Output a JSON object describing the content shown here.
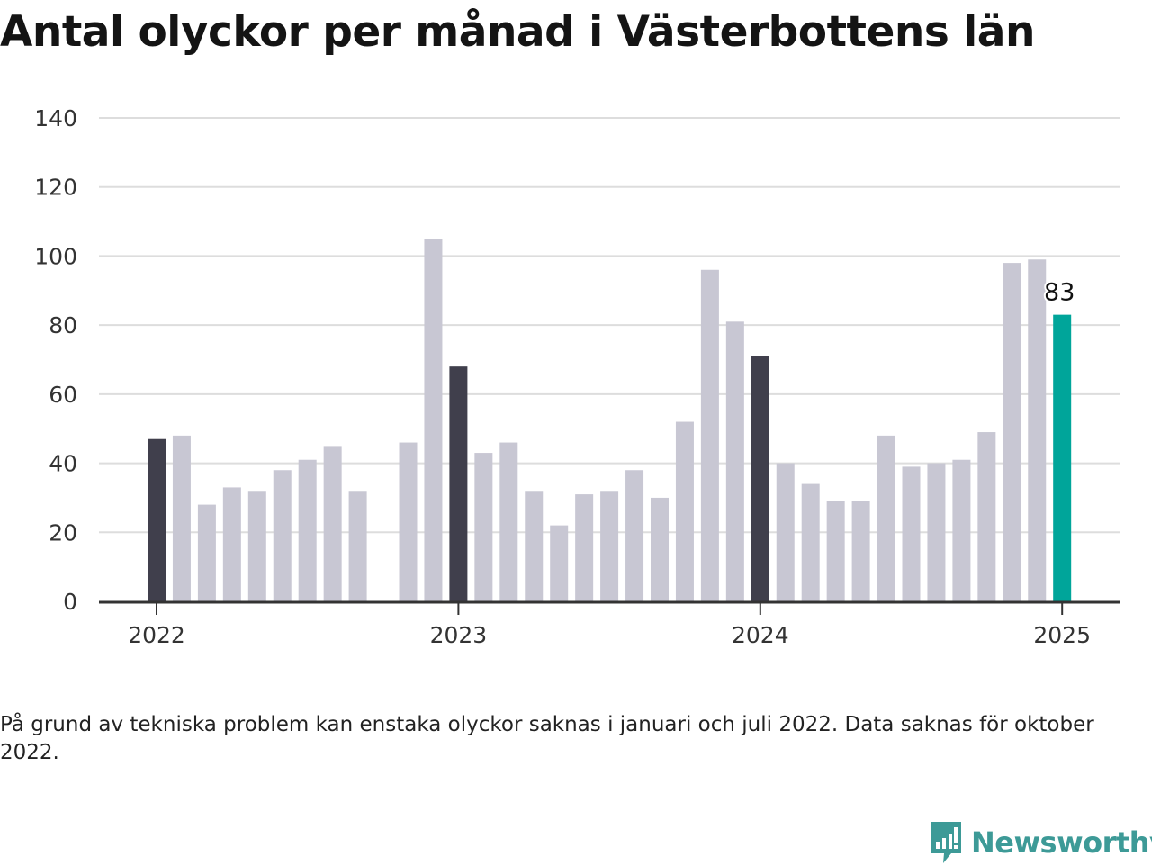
{
  "title": "Antal olyckor per månad i Västerbottens län",
  "note": "På grund av tekniska problem kan enstaka olyckor saknas i januari och juli 2022. Data saknas för oktober 2022.",
  "brand": {
    "name": "Newsworthy",
    "icon": "newsworthy-logo-icon"
  },
  "colors": {
    "default": "#c8c7d3",
    "january": "#403f4c",
    "highlight": "#00a59a",
    "grid": "#dddddd",
    "axis": "#333333"
  },
  "chart_data": {
    "type": "bar",
    "ylim": [
      0,
      140
    ],
    "yticks": [
      "0",
      "20",
      "40",
      "60",
      "80",
      "100",
      "120",
      "140"
    ],
    "xticks": [
      "2022",
      "2023",
      "2024",
      "2025"
    ],
    "grid": true,
    "highlight_label": "83",
    "x": [
      "2022-01",
      "2022-02",
      "2022-03",
      "2022-04",
      "2022-05",
      "2022-06",
      "2022-07",
      "2022-08",
      "2022-09",
      "2022-10",
      "2022-11",
      "2022-12",
      "2023-01",
      "2023-02",
      "2023-03",
      "2023-04",
      "2023-05",
      "2023-06",
      "2023-07",
      "2023-08",
      "2023-09",
      "2023-10",
      "2023-11",
      "2023-12",
      "2024-01",
      "2024-02",
      "2024-03",
      "2024-04",
      "2024-05",
      "2024-06",
      "2024-07",
      "2024-08",
      "2024-09",
      "2024-10",
      "2024-11",
      "2024-12",
      "2025-01"
    ],
    "values": [
      47,
      48,
      28,
      33,
      32,
      38,
      41,
      45,
      32,
      null,
      46,
      105,
      68,
      43,
      46,
      32,
      22,
      31,
      32,
      38,
      30,
      52,
      96,
      81,
      71,
      40,
      34,
      29,
      29,
      48,
      39,
      40,
      41,
      49,
      98,
      99,
      83
    ],
    "highlight": "2025-01"
  }
}
